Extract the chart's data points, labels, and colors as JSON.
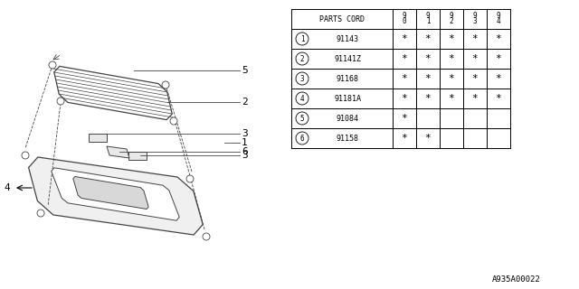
{
  "footnote": "A935A00022",
  "table_header_label": "PARTS CORD",
  "year_cols": [
    "9\n0",
    "9\n1",
    "9\n2",
    "9\n3",
    "9\n4"
  ],
  "parts": [
    {
      "num": 1,
      "code": "91143",
      "stars": [
        1,
        1,
        1,
        1,
        1
      ]
    },
    {
      "num": 2,
      "code": "91141Z",
      "stars": [
        1,
        1,
        1,
        1,
        1
      ]
    },
    {
      "num": 3,
      "code": "91168",
      "stars": [
        1,
        1,
        1,
        1,
        1
      ]
    },
    {
      "num": 4,
      "code": "91181A",
      "stars": [
        1,
        1,
        1,
        1,
        1
      ]
    },
    {
      "num": 5,
      "code": "91084",
      "stars": [
        1,
        0,
        0,
        0,
        0
      ]
    },
    {
      "num": 6,
      "code": "91158",
      "stars": [
        1,
        1,
        0,
        0,
        0
      ]
    }
  ],
  "bg_color": "#ffffff",
  "line_color": "#000000",
  "diagram_color": "#444444",
  "font_size": 7,
  "label_font_size": 7,
  "table_font_size": 6
}
